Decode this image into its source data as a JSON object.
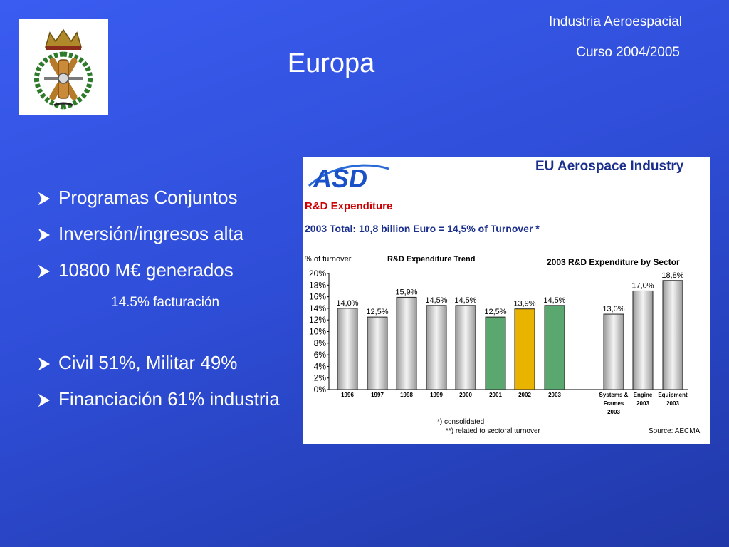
{
  "header": {
    "course_name": "Industria Aeroespacial",
    "course_year": "Curso 2004/2005",
    "title": "Europa"
  },
  "logo": {
    "icon": "university-crest-icon"
  },
  "bullets": [
    {
      "text": "Programas Conjuntos"
    },
    {
      "text": "Inversión/ingresos alta"
    },
    {
      "text": "10800 M€ generados"
    },
    {
      "text": "Civil 51%, Militar 49%"
    },
    {
      "text": "Financiación 61% industria"
    }
  ],
  "subnote": "14.5% facturación",
  "figure": {
    "brand": "ASD",
    "heading": "EU Aerospace Industry",
    "subheading": "R&D Expenditure",
    "total_line": "2003 Total: 10,8 billion Euro = 14,5% of Turnover *",
    "trend_label": "R&D Expenditure Trend",
    "sector_label": "2003 R&D Expenditure by Sector",
    "note1": "*) consolidated",
    "note2": "**) related to sectoral turnover",
    "source": "Source: AECMA"
  },
  "chart_data": {
    "type": "bar",
    "ylabel": "% of turnover",
    "ylim": [
      0,
      20
    ],
    "yticks": [
      "0%",
      "2%",
      "4%",
      "6%",
      "8%",
      "10%",
      "12%",
      "14%",
      "16%",
      "18%",
      "20%"
    ],
    "categories": [
      [
        "1996"
      ],
      [
        "1997"
      ],
      [
        "1998"
      ],
      [
        "1999"
      ],
      [
        "2000"
      ],
      [
        "2001"
      ],
      [
        "2002"
      ],
      [
        "2003"
      ],
      [
        "Systems &",
        "Frames",
        "2003"
      ],
      [
        "Engine",
        "2003"
      ],
      [
        "Equipment",
        "2003"
      ]
    ],
    "values": [
      14.0,
      12.5,
      15.9,
      14.5,
      14.5,
      12.5,
      13.9,
      14.5,
      13.0,
      17.0,
      18.8
    ],
    "data_labels": [
      "14,0%",
      "12,5%",
      "15,9%",
      "14,5%",
      "14,5%",
      "12,5%",
      "13,9%",
      "14,5%",
      "13,0%",
      "17,0%",
      "18,8%"
    ],
    "colors": [
      "#d8d8d8",
      "#d8d8d8",
      "#d8d8d8",
      "#d8d8d8",
      "#d8d8d8",
      "#5aa870",
      "#e8b400",
      "#5aa870",
      "#d8d8d8",
      "#d8d8d8",
      "#d8d8d8"
    ]
  }
}
